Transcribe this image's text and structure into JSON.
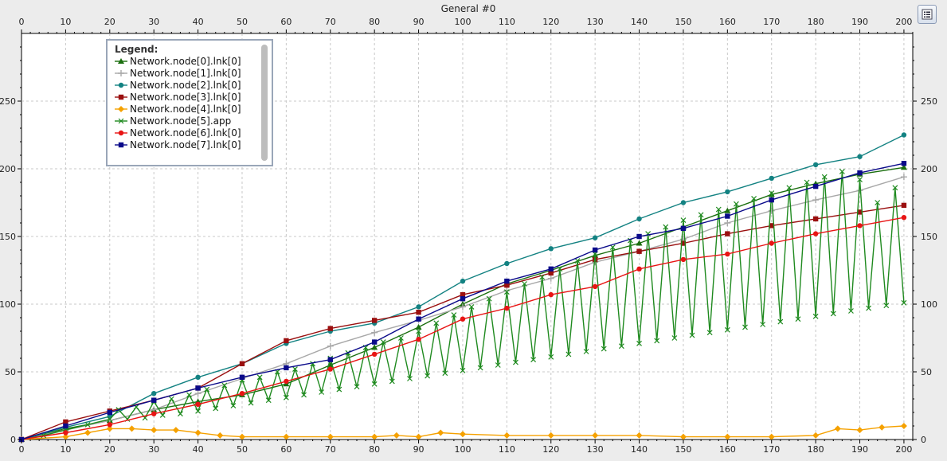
{
  "chart_data": {
    "type": "line",
    "title": "General  #0",
    "xlabel": "",
    "ylabel": "",
    "xlim": [
      0,
      202
    ],
    "ylim": [
      0,
      300
    ],
    "x_ticks": [
      0,
      10,
      20,
      30,
      40,
      50,
      60,
      70,
      80,
      90,
      100,
      110,
      120,
      130,
      140,
      150,
      160,
      170,
      180,
      190,
      200
    ],
    "y_ticks": [
      0,
      50,
      100,
      150,
      200,
      250
    ],
    "grid": true,
    "legend_title": "Legend:",
    "legend_position": "top-left",
    "series": [
      {
        "name": "Network.node[0].lnk[0]",
        "color": "#1a6e0e",
        "marker": "triangle",
        "x": [
          0,
          10,
          20,
          30,
          40,
          50,
          60,
          70,
          80,
          90,
          100,
          110,
          120,
          130,
          140,
          150,
          160,
          170,
          180,
          190,
          200
        ],
        "values": [
          0,
          8,
          14,
          22,
          28,
          33,
          41,
          55,
          68,
          83,
          100,
          115,
          125,
          136,
          145,
          157,
          169,
          181,
          189,
          196,
          201
        ]
      },
      {
        "name": "Network.node[1].lnk[0]",
        "color": "#a8a8a8",
        "marker": "plus",
        "x": [
          0,
          10,
          20,
          30,
          40,
          50,
          60,
          70,
          80,
          90,
          100,
          110,
          120,
          130,
          140,
          150,
          160,
          170,
          180,
          190,
          200
        ],
        "values": [
          0,
          7,
          14,
          22,
          34,
          45,
          56,
          69,
          79,
          88,
          98,
          110,
          119,
          131,
          139,
          148,
          160,
          169,
          177,
          184,
          194
        ]
      },
      {
        "name": "Network.node[2].lnk[0]",
        "color": "#138282",
        "marker": "circle",
        "x": [
          0,
          10,
          20,
          30,
          40,
          50,
          60,
          70,
          80,
          90,
          100,
          110,
          120,
          130,
          140,
          150,
          160,
          170,
          180,
          190,
          200
        ],
        "values": [
          0,
          9,
          17,
          34,
          46,
          56,
          71,
          80,
          86,
          98,
          117,
          130,
          141,
          149,
          163,
          175,
          183,
          193,
          203,
          209,
          225
        ]
      },
      {
        "name": "Network.node[3].lnk[0]",
        "color": "#9a0f0f",
        "marker": "square",
        "x": [
          0,
          10,
          20,
          30,
          40,
          50,
          60,
          70,
          80,
          90,
          100,
          110,
          120,
          130,
          140,
          150,
          160,
          170,
          180,
          190,
          200
        ],
        "values": [
          0,
          13,
          21,
          29,
          38,
          56,
          73,
          82,
          88,
          94,
          107,
          114,
          123,
          133,
          139,
          145,
          152,
          158,
          163,
          168,
          173
        ]
      },
      {
        "name": "Network.node[4].lnk[0]",
        "color": "#f5a100",
        "marker": "diamond",
        "x": [
          0,
          10,
          15,
          20,
          25,
          30,
          35,
          40,
          45,
          50,
          60,
          70,
          80,
          85,
          90,
          95,
          100,
          110,
          120,
          130,
          140,
          150,
          160,
          170,
          180,
          185,
          190,
          195,
          200
        ],
        "values": [
          0,
          2,
          5,
          8,
          8,
          7,
          7,
          5,
          3,
          2,
          2,
          2,
          2,
          3,
          2,
          5,
          4,
          3,
          3,
          3,
          3,
          2,
          2,
          2,
          3,
          8,
          7,
          9,
          10
        ]
      },
      {
        "name": "Network.node[5].app",
        "color": "#1f8a1f",
        "marker": "x",
        "x": [
          0,
          5,
          10,
          15,
          20,
          22,
          24,
          26,
          28,
          30,
          32,
          34,
          36,
          38,
          40,
          42,
          44,
          46,
          48,
          50,
          52,
          54,
          56,
          58,
          60,
          62,
          64,
          66,
          68,
          70,
          72,
          74,
          76,
          78,
          80,
          82,
          84,
          86,
          88,
          90,
          92,
          94,
          96,
          98,
          100,
          102,
          104,
          106,
          108,
          110,
          112,
          114,
          116,
          118,
          120,
          122,
          124,
          126,
          128,
          130,
          132,
          134,
          136,
          138,
          140,
          142,
          144,
          146,
          148,
          150,
          152,
          154,
          156,
          158,
          160,
          162,
          164,
          166,
          168,
          170,
          172,
          174,
          176,
          178,
          180,
          182,
          184,
          186,
          188,
          190,
          192,
          194,
          196,
          198,
          200
        ],
        "values": [
          0,
          3,
          7,
          11,
          15,
          22,
          15,
          24,
          16,
          28,
          18,
          30,
          19,
          33,
          21,
          37,
          23,
          40,
          25,
          44,
          27,
          46,
          29,
          50,
          31,
          52,
          33,
          56,
          35,
          60,
          37,
          64,
          39,
          68,
          41,
          72,
          43,
          75,
          45,
          80,
          47,
          86,
          49,
          92,
          51,
          98,
          53,
          104,
          55,
          109,
          57,
          115,
          59,
          120,
          61,
          126,
          63,
          132,
          65,
          137,
          67,
          142,
          69,
          147,
          71,
          152,
          73,
          157,
          75,
          162,
          77,
          166,
          79,
          170,
          81,
          174,
          83,
          178,
          85,
          182,
          87,
          186,
          89,
          190,
          91,
          194,
          93,
          198,
          95,
          192,
          97,
          175,
          99,
          186,
          101
        ]
      },
      {
        "name": "Network.node[6].lnk[0]",
        "color": "#e81414",
        "marker": "circle",
        "x": [
          0,
          10,
          20,
          30,
          40,
          50,
          60,
          70,
          80,
          90,
          100,
          110,
          120,
          130,
          140,
          150,
          160,
          170,
          180,
          190,
          200
        ],
        "values": [
          0,
          5,
          11,
          19,
          26,
          34,
          43,
          52,
          63,
          74,
          89,
          97,
          107,
          113,
          126,
          133,
          137,
          145,
          152,
          158,
          164
        ]
      },
      {
        "name": "Network.node[7].lnk[0]",
        "color": "#0a0a8a",
        "marker": "square",
        "x": [
          0,
          10,
          20,
          30,
          40,
          50,
          60,
          70,
          80,
          90,
          100,
          110,
          120,
          130,
          140,
          150,
          160,
          170,
          180,
          190,
          200
        ],
        "values": [
          0,
          10,
          20,
          29,
          38,
          46,
          53,
          59,
          72,
          89,
          104,
          117,
          126,
          140,
          150,
          156,
          165,
          177,
          187,
          197,
          204
        ]
      }
    ]
  }
}
